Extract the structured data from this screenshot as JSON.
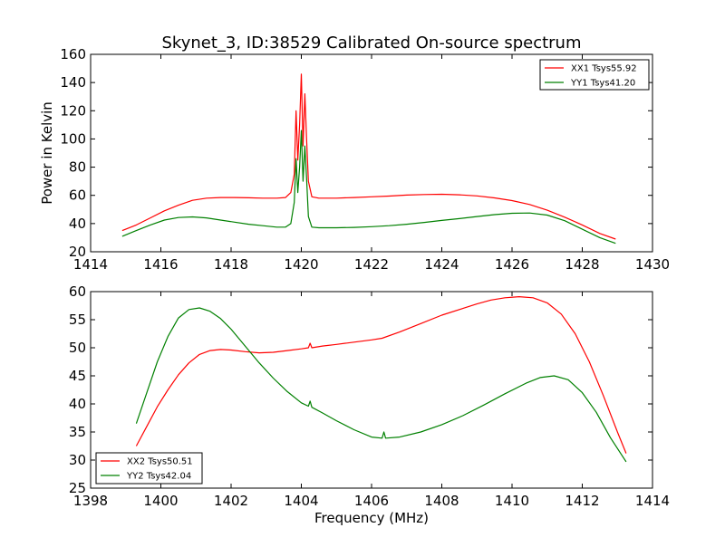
{
  "chart_data": [
    {
      "type": "line",
      "title": "Skynet_3, ID:38529 Calibrated On-source spectrum",
      "xlabel": "",
      "ylabel": "Power in Kelvin",
      "xlim": [
        1414,
        1430
      ],
      "ylim": [
        20,
        160
      ],
      "xticks": [
        "1414",
        "1416",
        "1418",
        "1420",
        "1422",
        "1424",
        "1426",
        "1428",
        "1430"
      ],
      "yticks": [
        "20",
        "40",
        "60",
        "80",
        "100",
        "120",
        "140",
        "160"
      ],
      "legend_position": "top-right",
      "grid": false,
      "series": [
        {
          "name": "XX1 Tsys55.92",
          "color": "#ff0000",
          "x": [
            1414.9,
            1415.3,
            1415.7,
            1416.1,
            1416.5,
            1416.9,
            1417.3,
            1417.7,
            1418.1,
            1418.5,
            1418.9,
            1419.3,
            1419.55,
            1419.7,
            1419.8,
            1419.85,
            1419.9,
            1419.95,
            1420.0,
            1420.05,
            1420.1,
            1420.15,
            1420.2,
            1420.3,
            1420.5,
            1421.0,
            1421.5,
            1422.0,
            1422.5,
            1423.0,
            1423.5,
            1424.0,
            1424.5,
            1425.0,
            1425.5,
            1426.0,
            1426.5,
            1427.0,
            1427.5,
            1428.0,
            1428.5,
            1428.95
          ],
          "y": [
            35,
            39,
            44,
            49,
            53,
            56.5,
            58,
            58.5,
            58.5,
            58.3,
            58,
            58,
            58.5,
            62,
            75,
            120,
            85,
            110,
            146,
            95,
            132,
            100,
            70,
            59,
            58,
            58,
            58.5,
            59,
            59.5,
            60.2,
            60.6,
            60.8,
            60.4,
            59.6,
            58.2,
            56.3,
            53.5,
            49.5,
            44.5,
            39,
            33,
            29
          ]
        },
        {
          "name": "YY1 Tsys41.20",
          "color": "#008000",
          "x": [
            1414.9,
            1415.3,
            1415.7,
            1416.1,
            1416.5,
            1416.9,
            1417.3,
            1417.7,
            1418.1,
            1418.5,
            1418.9,
            1419.3,
            1419.55,
            1419.7,
            1419.8,
            1419.85,
            1419.9,
            1419.95,
            1420.0,
            1420.05,
            1420.1,
            1420.15,
            1420.2,
            1420.3,
            1420.5,
            1421.0,
            1421.5,
            1422.0,
            1422.5,
            1423.0,
            1423.5,
            1424.0,
            1424.5,
            1425.0,
            1425.5,
            1426.0,
            1426.5,
            1427.0,
            1427.5,
            1428.0,
            1428.5,
            1428.95
          ],
          "y": [
            31,
            35,
            39,
            42.5,
            44.3,
            44.7,
            44,
            42.5,
            41,
            39.5,
            38.5,
            37.5,
            37.5,
            40,
            55,
            86,
            62,
            80,
            106,
            70,
            95,
            72,
            45,
            37.5,
            37,
            37,
            37.3,
            37.8,
            38.5,
            39.5,
            40.8,
            42.2,
            43.5,
            45,
            46.3,
            47.3,
            47.5,
            46,
            42,
            36,
            30,
            26
          ]
        }
      ]
    },
    {
      "type": "line",
      "title": "",
      "xlabel": "Frequency (MHz)",
      "ylabel": "",
      "xlim": [
        1398,
        1414
      ],
      "ylim": [
        25,
        60
      ],
      "xticks": [
        "1398",
        "1400",
        "1402",
        "1404",
        "1406",
        "1408",
        "1410",
        "1412",
        "1414"
      ],
      "yticks": [
        "25",
        "30",
        "35",
        "40",
        "45",
        "50",
        "55",
        "60"
      ],
      "legend_position": "bottom-left",
      "grid": false,
      "series": [
        {
          "name": "XX2 Tsys50.51",
          "color": "#ff0000",
          "x": [
            1399.3,
            1399.6,
            1399.9,
            1400.2,
            1400.5,
            1400.8,
            1401.1,
            1401.4,
            1401.7,
            1402.0,
            1402.4,
            1402.8,
            1403.2,
            1403.6,
            1404.0,
            1404.2,
            1404.25,
            1404.3,
            1404.6,
            1405.0,
            1405.5,
            1406.0,
            1406.3,
            1406.8,
            1407.4,
            1408.0,
            1408.6,
            1409.0,
            1409.4,
            1409.8,
            1410.2,
            1410.6,
            1411.0,
            1411.4,
            1411.8,
            1412.2,
            1412.6,
            1413.0,
            1413.25
          ],
          "y": [
            32.5,
            36,
            39.5,
            42.5,
            45.2,
            47.3,
            48.8,
            49.5,
            49.7,
            49.6,
            49.3,
            49.1,
            49.2,
            49.5,
            49.8,
            50,
            50.8,
            50,
            50.3,
            50.6,
            51,
            51.4,
            51.7,
            52.8,
            54.3,
            55.8,
            57,
            57.8,
            58.5,
            58.9,
            59.1,
            58.9,
            58,
            56,
            52.5,
            47.5,
            41.5,
            35,
            31.2
          ]
        },
        {
          "name": "YY2 Tsys42.04",
          "color": "#008000",
          "x": [
            1399.3,
            1399.6,
            1399.9,
            1400.2,
            1400.5,
            1400.8,
            1401.1,
            1401.4,
            1401.7,
            1402.0,
            1402.4,
            1402.8,
            1403.2,
            1403.6,
            1404.0,
            1404.2,
            1404.25,
            1404.3,
            1404.6,
            1405.0,
            1405.5,
            1406.0,
            1406.3,
            1406.35,
            1406.4,
            1406.8,
            1407.4,
            1408.0,
            1408.6,
            1409.2,
            1409.8,
            1410.4,
            1410.8,
            1411.2,
            1411.6,
            1412.0,
            1412.4,
            1412.8,
            1413.25
          ],
          "y": [
            36.5,
            42,
            47.5,
            52,
            55.3,
            56.8,
            57.1,
            56.5,
            55.2,
            53.3,
            50.3,
            47.3,
            44.6,
            42.2,
            40.2,
            39.6,
            40.5,
            39.4,
            38.4,
            37,
            35.4,
            34.1,
            33.9,
            35,
            33.9,
            34.1,
            35,
            36.3,
            37.9,
            39.8,
            41.8,
            43.7,
            44.7,
            45,
            44.3,
            42,
            38.5,
            34,
            29.7
          ]
        }
      ]
    }
  ]
}
